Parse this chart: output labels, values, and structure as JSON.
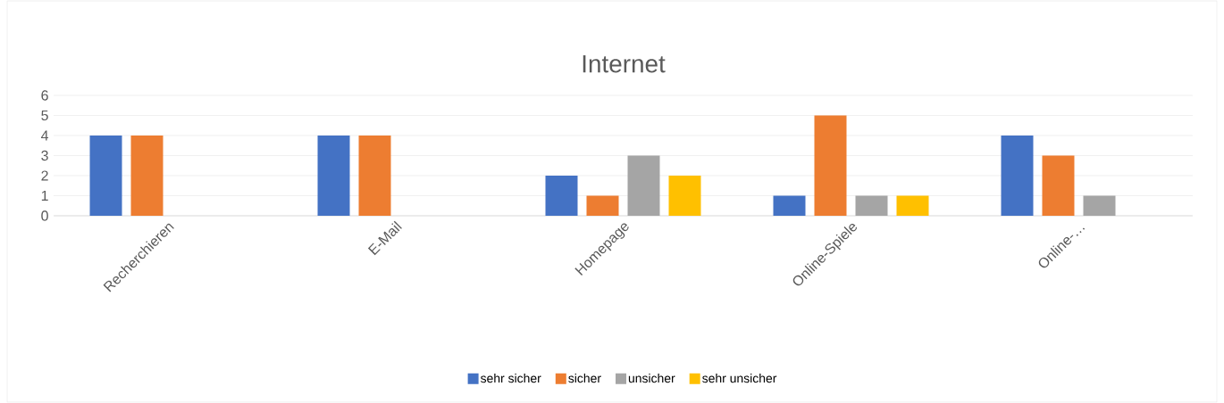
{
  "chart_data": {
    "type": "bar",
    "title": "Internet",
    "categories": [
      "Recherchieren",
      "E-Mail",
      "Homepage",
      "Online-Spiele",
      "Online-…"
    ],
    "series": [
      {
        "name": "sehr sicher",
        "color": "#4472c4",
        "values": [
          4,
          4,
          2,
          1,
          4
        ]
      },
      {
        "name": "sicher",
        "color": "#ed7d31",
        "values": [
          4,
          4,
          1,
          5,
          3
        ]
      },
      {
        "name": "unsicher",
        "color": "#a5a5a5",
        "values": [
          0,
          0,
          3,
          1,
          1
        ]
      },
      {
        "name": "sehr unsicher",
        "color": "#ffc000",
        "values": [
          0,
          0,
          2,
          1,
          0
        ]
      }
    ],
    "ylim": [
      0,
      6
    ],
    "yticks": [
      0,
      1,
      2,
      3,
      4,
      5,
      6
    ],
    "grid": "y",
    "legend": "bottom"
  }
}
